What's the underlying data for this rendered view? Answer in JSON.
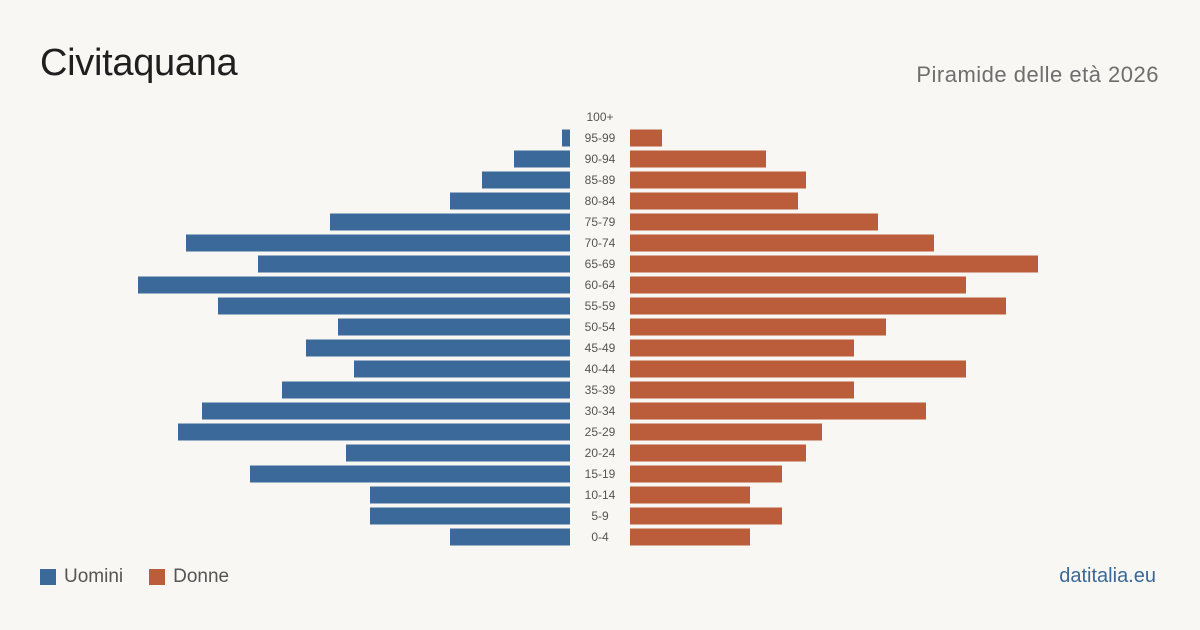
{
  "header": {
    "title": "Civitaquana",
    "subtitle": "Piramide delle età 2026"
  },
  "legend": {
    "men_label": "Uomini",
    "women_label": "Donne"
  },
  "source": "datitalia.eu",
  "colors": {
    "men": "#3b6a9a",
    "women": "#bb5d3b",
    "background": "#f9f7f3"
  },
  "chart_data": {
    "type": "bar",
    "orientation": "horizontal-pyramid",
    "title": "Piramide delle età 2026",
    "categories": [
      "100+",
      "95-99",
      "90-94",
      "85-89",
      "80-84",
      "75-79",
      "70-74",
      "65-69",
      "60-64",
      "55-59",
      "50-54",
      "45-49",
      "40-44",
      "35-39",
      "30-34",
      "25-29",
      "20-24",
      "15-19",
      "10-14",
      "5-9",
      "0-4"
    ],
    "series": [
      {
        "name": "Uomini",
        "values": [
          0,
          1,
          7,
          11,
          15,
          30,
          48,
          39,
          54,
          44,
          29,
          33,
          27,
          36,
          46,
          49,
          28,
          40,
          25,
          25,
          15
        ]
      },
      {
        "name": "Donne",
        "values": [
          0,
          4,
          17,
          22,
          21,
          31,
          38,
          51,
          42,
          47,
          32,
          28,
          42,
          28,
          37,
          24,
          22,
          19,
          15,
          19,
          15
        ]
      }
    ],
    "legend_position": "bottom-left",
    "grid": false
  }
}
